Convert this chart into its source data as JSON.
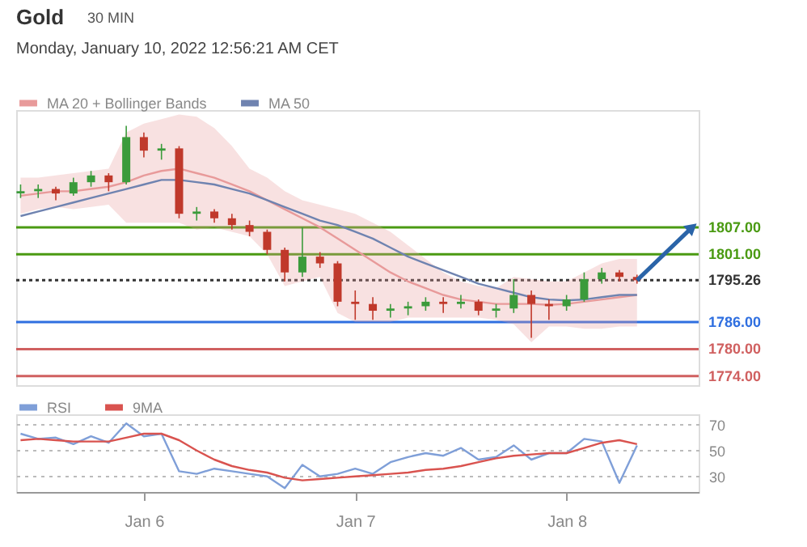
{
  "chart_data": [
    {
      "type": "candlestick",
      "title": "Gold",
      "subtitle": "Monday, January 10, 2022 12:56:21 AM CET",
      "annotations": [
        "30 MIN"
      ],
      "x": [
        "2022-01-05T10:00",
        "2022-01-05T12:00",
        "2022-01-05T14:00",
        "2022-01-05T16:00",
        "2022-01-05T18:00",
        "2022-01-05T20:00",
        "2022-01-05T22:00",
        "2022-01-06T00:00",
        "2022-01-06T02:00",
        "2022-01-06T04:00",
        "2022-01-06T06:00",
        "2022-01-06T08:00",
        "2022-01-06T10:00",
        "2022-01-06T12:00",
        "2022-01-06T14:00",
        "2022-01-06T16:00",
        "2022-01-06T18:00",
        "2022-01-06T20:00",
        "2022-01-06T22:00",
        "2022-01-07T00:00",
        "2022-01-07T02:00",
        "2022-01-07T04:00",
        "2022-01-07T06:00",
        "2022-01-07T08:00",
        "2022-01-07T10:00",
        "2022-01-07T12:00",
        "2022-01-07T14:00",
        "2022-01-07T16:00",
        "2022-01-07T18:00",
        "2022-01-07T20:00",
        "2022-01-07T22:00",
        "2022-01-08T00:00",
        "2022-01-08T02:00",
        "2022-01-08T04:00",
        "2022-01-08T06:00",
        "2022-01-08T08:00"
      ],
      "ohlc": [
        [
          1814.5,
          1816.5,
          1813.5,
          1815
        ],
        [
          1815,
          1816.5,
          1813.5,
          1815.5
        ],
        [
          1815.5,
          1816,
          1813,
          1814.5
        ],
        [
          1814.5,
          1818,
          1814,
          1817
        ],
        [
          1817,
          1819.5,
          1816,
          1818.5
        ],
        [
          1818.5,
          1819,
          1815,
          1817
        ],
        [
          1817,
          1829.5,
          1816.5,
          1827
        ],
        [
          1827,
          1828,
          1822.5,
          1824
        ],
        [
          1824,
          1825.5,
          1822,
          1824.5
        ],
        [
          1824.5,
          1825,
          1809,
          1810
        ],
        [
          1810,
          1811.5,
          1808.5,
          1810.5
        ],
        [
          1810.5,
          1811,
          1808,
          1809
        ],
        [
          1809,
          1810,
          1806.5,
          1807.5
        ],
        [
          1807.5,
          1808.5,
          1805,
          1806
        ],
        [
          1806,
          1806.5,
          1801,
          1802
        ],
        [
          1802,
          1802.5,
          1795,
          1797
        ],
        [
          1797,
          1807,
          1796,
          1800.5
        ],
        [
          1800.5,
          1801.5,
          1798,
          1799
        ],
        [
          1799,
          1799.5,
          1789.5,
          1790.5
        ],
        [
          1790.5,
          1793,
          1786.5,
          1790
        ],
        [
          1790,
          1791.5,
          1786.5,
          1788.5
        ],
        [
          1788.5,
          1790,
          1787,
          1789
        ],
        [
          1789,
          1790.5,
          1787.5,
          1789.5
        ],
        [
          1789.5,
          1791.5,
          1788.5,
          1790.5
        ],
        [
          1790.5,
          1791.5,
          1788,
          1790
        ],
        [
          1790,
          1792,
          1789,
          1790.5
        ],
        [
          1790.5,
          1791,
          1787.5,
          1788.5
        ],
        [
          1788.5,
          1790,
          1787,
          1789
        ],
        [
          1789,
          1795.5,
          1788,
          1792
        ],
        [
          1792,
          1793,
          1782.5,
          1790
        ],
        [
          1790,
          1791,
          1786.5,
          1789.5
        ],
        [
          1789.5,
          1792,
          1788.5,
          1791
        ],
        [
          1791,
          1797,
          1790.5,
          1795.5
        ],
        [
          1795.5,
          1798,
          1794.5,
          1797
        ],
        [
          1797,
          1797.5,
          1795,
          1796
        ],
        [
          1796,
          1796.5,
          1794.5,
          1795.26
        ]
      ],
      "colors": [
        "#3b9b3b",
        "#3b9b3b",
        "#c0392b",
        "#3b9b3b",
        "#3b9b3b",
        "#c0392b",
        "#3b9b3b",
        "#c0392b",
        "#3b9b3b",
        "#c0392b",
        "#3b9b3b",
        "#c0392b",
        "#c0392b",
        "#c0392b",
        "#c0392b",
        "#c0392b",
        "#3b9b3b",
        "#c0392b",
        "#c0392b",
        "#c0392b",
        "#c0392b",
        "#3b9b3b",
        "#3b9b3b",
        "#3b9b3b",
        "#c0392b",
        "#3b9b3b",
        "#c0392b",
        "#3b9b3b",
        "#3b9b3b",
        "#c0392b",
        "#c0392b",
        "#3b9b3b",
        "#3b9b3b",
        "#3b9b3b",
        "#c0392b",
        "#c0392b"
      ],
      "series": [
        {
          "name": "MA 20 + Bollinger Bands",
          "type": "line",
          "color": "#e89a9a",
          "values": [
            1814,
            1814.5,
            1815,
            1815,
            1815.5,
            1816,
            1817,
            1818.5,
            1819.5,
            1820,
            1819,
            1818,
            1816.5,
            1815,
            1813,
            1811,
            1809,
            1807,
            1804.5,
            1802,
            1799.5,
            1797,
            1795,
            1793.5,
            1792,
            1791,
            1790.5,
            1790,
            1790,
            1790,
            1789.8,
            1790,
            1790.5,
            1791,
            1791.5,
            1792
          ],
          "lower": [
            1810,
            1811,
            1811.5,
            1811,
            1811.5,
            1812,
            1808,
            1808,
            1808,
            1808,
            1806.5,
            1807,
            1806,
            1805,
            1801,
            1794,
            1795,
            1796,
            1788,
            1786,
            1786,
            1786,
            1787,
            1787,
            1787,
            1787,
            1787,
            1786.5,
            1785.5,
            1781.5,
            1785,
            1785,
            1784.5,
            1784.5,
            1785,
            1785
          ],
          "upper": [
            1818,
            1818,
            1818.5,
            1819,
            1819.5,
            1820,
            1828,
            1830,
            1831,
            1832,
            1831.5,
            1829,
            1825,
            1820,
            1818,
            1815,
            1813,
            1812,
            1811,
            1810,
            1808,
            1806,
            1803,
            1800,
            1797,
            1795,
            1794,
            1793.5,
            1796,
            1795.5,
            1795,
            1795,
            1797,
            1799,
            1800,
            1800
          ]
        },
        {
          "name": "MA 50",
          "type": "line",
          "color": "#6f83b0",
          "values": [
            1809.5,
            1810.5,
            1811.5,
            1812.5,
            1813.5,
            1814.5,
            1815.5,
            1816.5,
            1817.5,
            1817.5,
            1817,
            1816.5,
            1815.5,
            1814.5,
            1813,
            1811.5,
            1810,
            1808.5,
            1807.5,
            1806,
            1804.5,
            1802.5,
            1800.5,
            1799,
            1797.5,
            1796,
            1794.5,
            1793.5,
            1792.5,
            1791.5,
            1791,
            1790.8,
            1791,
            1791.5,
            1792,
            1792
          ]
        }
      ],
      "xlim": [
        "2022-01-05T09:30",
        "2022-01-08T15:00"
      ],
      "ylim": [
        1772,
        1833
      ],
      "yticks": [
        {
          "value": 1807,
          "label": "1807.00"
        },
        {
          "value": 1801,
          "label": "1801.00"
        },
        {
          "value": 1795.26,
          "label": "1795.26"
        },
        {
          "value": 1786,
          "label": "1786.00"
        },
        {
          "value": 1780,
          "label": "1780.00"
        },
        {
          "value": 1774,
          "label": "1774.00"
        }
      ],
      "tick_labels": "y",
      "legend": "top left",
      "marker": "none",
      "line_style": "solid",
      "ref_lines": [
        {
          "axis": "y",
          "value": 1807,
          "color": "#4a9a12",
          "line_style": "solid"
        },
        {
          "axis": "y",
          "value": 1801,
          "color": "#4a9a12",
          "line_style": "solid"
        },
        {
          "axis": "y",
          "value": 1795.26,
          "color": "#333333",
          "line_style": "dotted"
        },
        {
          "axis": "y",
          "value": 1786,
          "color": "#2f6fe0",
          "line_style": "solid"
        },
        {
          "axis": "y",
          "value": 1780,
          "color": "#d06060",
          "line_style": "solid"
        },
        {
          "axis": "y",
          "value": 1774,
          "color": "#d06060",
          "line_style": "solid"
        }
      ]
    },
    {
      "type": "line",
      "x": [
        "2022-01-05T10:00",
        "2022-01-05T12:00",
        "2022-01-05T14:00",
        "2022-01-05T16:00",
        "2022-01-05T18:00",
        "2022-01-05T20:00",
        "2022-01-05T22:00",
        "2022-01-06T00:00",
        "2022-01-06T02:00",
        "2022-01-06T04:00",
        "2022-01-06T06:00",
        "2022-01-06T08:00",
        "2022-01-06T10:00",
        "2022-01-06T12:00",
        "2022-01-06T14:00",
        "2022-01-06T16:00",
        "2022-01-06T18:00",
        "2022-01-06T20:00",
        "2022-01-06T22:00",
        "2022-01-07T00:00",
        "2022-01-07T02:00",
        "2022-01-07T04:00",
        "2022-01-07T06:00",
        "2022-01-07T08:00",
        "2022-01-07T10:00",
        "2022-01-07T12:00",
        "2022-01-07T14:00",
        "2022-01-07T16:00",
        "2022-01-07T18:00",
        "2022-01-07T20:00",
        "2022-01-07T22:00",
        "2022-01-08T00:00",
        "2022-01-08T02:00",
        "2022-01-08T04:00",
        "2022-01-08T06:00",
        "2022-01-08T08:00"
      ],
      "series": [
        {
          "name": "RSI",
          "color": "#7f9fd8",
          "values": [
            63,
            59,
            60,
            55,
            61,
            56,
            71,
            61,
            63,
            34,
            32,
            36,
            34,
            32,
            30,
            21,
            39,
            30,
            32,
            36,
            32,
            41,
            45,
            48,
            46,
            52,
            43,
            45,
            54,
            43,
            48,
            48,
            59,
            57,
            25,
            54
          ]
        },
        {
          "name": "9MA",
          "color": "#d9534f",
          "values": [
            58,
            59,
            58,
            57,
            57,
            57,
            60,
            63,
            63,
            58,
            50,
            43,
            38,
            35,
            33,
            29,
            27,
            28,
            29,
            30,
            31,
            32,
            33,
            35,
            36,
            38,
            41,
            44,
            46,
            47,
            48,
            48,
            52,
            56,
            58,
            55
          ]
        }
      ],
      "xlim": [
        "2022-01-05T09:30",
        "2022-01-08T15:00"
      ],
      "xticks": [
        {
          "value": "2022-01-06",
          "label": "Jan 6"
        },
        {
          "value": "2022-01-07",
          "label": "Jan 7"
        },
        {
          "value": "2022-01-08",
          "label": "Jan 8"
        }
      ],
      "ylim": [
        18,
        78
      ],
      "yticks": [
        30,
        50,
        70
      ],
      "grid": "y",
      "legend": "top left",
      "marker": "none",
      "line_style": "solid"
    }
  ]
}
